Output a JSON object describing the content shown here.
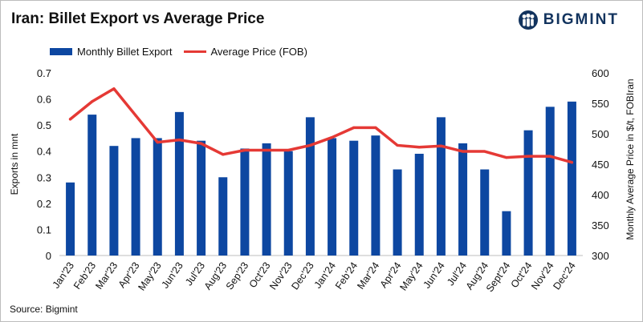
{
  "header": {
    "title": "Iran: Billet Export vs Average Price",
    "brand": "BIGMINT",
    "brand_icon": "people-logo-icon"
  },
  "legend": {
    "bar_label": "Monthly Billet Export",
    "line_label": "Average Price (FOB)"
  },
  "footer": {
    "source": "Source: Bigmint"
  },
  "colors": {
    "bar": "#0d47a1",
    "line": "#e53935",
    "brand": "#12335e"
  },
  "chart_data": {
    "type": "bar",
    "title": "Iran: Billet Export vs Average Price",
    "categories": [
      "Jan'23",
      "Feb'23",
      "Mar'23",
      "Apr'23",
      "May'23",
      "Jun'23",
      "Jul'23",
      "Aug'23",
      "Sep'23",
      "Oct'23",
      "Nov'23",
      "Dec'23",
      "Jan'24",
      "Feb'24",
      "Mar'24",
      "Apr'24",
      "May'24",
      "Jun'24",
      "Jul'24",
      "Aug'24",
      "Sept'24",
      "Oct'24",
      "Nov'24",
      "Dec'24"
    ],
    "series": [
      {
        "name": "Monthly Billet Export",
        "type": "bar",
        "axis": "left",
        "values": [
          0.28,
          0.54,
          0.42,
          0.45,
          0.45,
          0.55,
          0.44,
          0.3,
          0.41,
          0.43,
          0.4,
          0.53,
          0.45,
          0.44,
          0.46,
          0.33,
          0.39,
          0.53,
          0.43,
          0.33,
          0.17,
          0.48,
          0.57,
          0.59
        ]
      },
      {
        "name": "Average Price (FOB)",
        "type": "line",
        "axis": "right",
        "values": [
          524,
          553,
          574,
          530,
          486,
          490,
          484,
          466,
          473,
          473,
          473,
          481,
          494,
          510,
          510,
          481,
          478,
          480,
          471,
          471,
          461,
          463,
          463,
          453
        ]
      }
    ],
    "ylabel": "Exports in mnt",
    "ylabel_right": "Monthly Average Price in $/t, FOBIran",
    "ylim": [
      0,
      0.7
    ],
    "yticks": [
      "0",
      "0.1",
      "0.2",
      "0.3",
      "0.4",
      "0.5",
      "0.6",
      "0.7"
    ],
    "ylim_right": [
      300,
      600
    ],
    "yticks_right": [
      "300",
      "350",
      "400",
      "450",
      "500",
      "550",
      "600"
    ]
  }
}
